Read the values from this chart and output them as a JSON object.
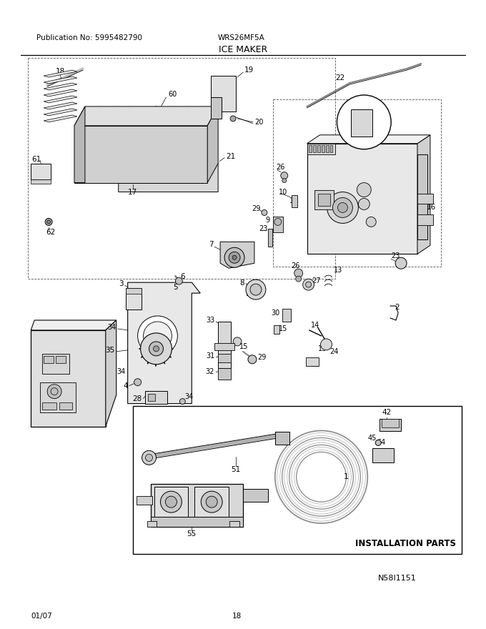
{
  "pub_no": "Publication No: 5995482790",
  "model": "WRS26MF5A",
  "title": "ICE MAKER",
  "date": "01/07",
  "page": "18",
  "doc_code": "N58I1151",
  "bg_color": "#ffffff",
  "line_color": "#000000",
  "install_box_label": "INSTALLATION PARTS",
  "fig_width": 6.8,
  "fig_height": 8.8,
  "dpi": 100
}
